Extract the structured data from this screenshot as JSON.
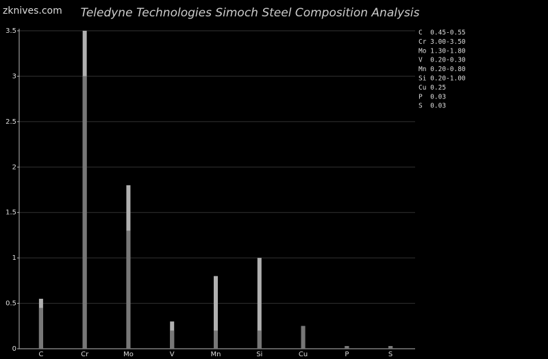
{
  "watermark": "zknives.com",
  "chart_data": {
    "type": "bar",
    "title": "Teledyne Technologies Simoch Steel Composition Analysis",
    "categories": [
      "C",
      "Cr",
      "Mo",
      "V",
      "Mn",
      "Si",
      "Cu",
      "P",
      "S"
    ],
    "series": [
      {
        "color": "#777777",
        "values": [
          0.45,
          3.0,
          1.3,
          0.2,
          0.2,
          0.2,
          0.25,
          0.03,
          0.03
        ]
      },
      {
        "color": "#b0b0b0",
        "values": [
          0.55,
          3.5,
          1.8,
          0.3,
          0.8,
          1.0,
          0.25,
          0.03,
          0.03
        ]
      }
    ],
    "ylim": [
      0,
      3.5
    ],
    "yticks": [
      0,
      0.5,
      1,
      1.5,
      2,
      2.5,
      3,
      3.5
    ],
    "grid": true,
    "annotations": [
      "C  0.45-0.55",
      "Cr 3.00-3.50",
      "Mo 1.30-1.80",
      "V  0.20-0.30",
      "Mn 0.20-0.80",
      "Si 0.20-1.00",
      "Cu 0.25",
      "P  0.03",
      "S  0.03"
    ]
  }
}
